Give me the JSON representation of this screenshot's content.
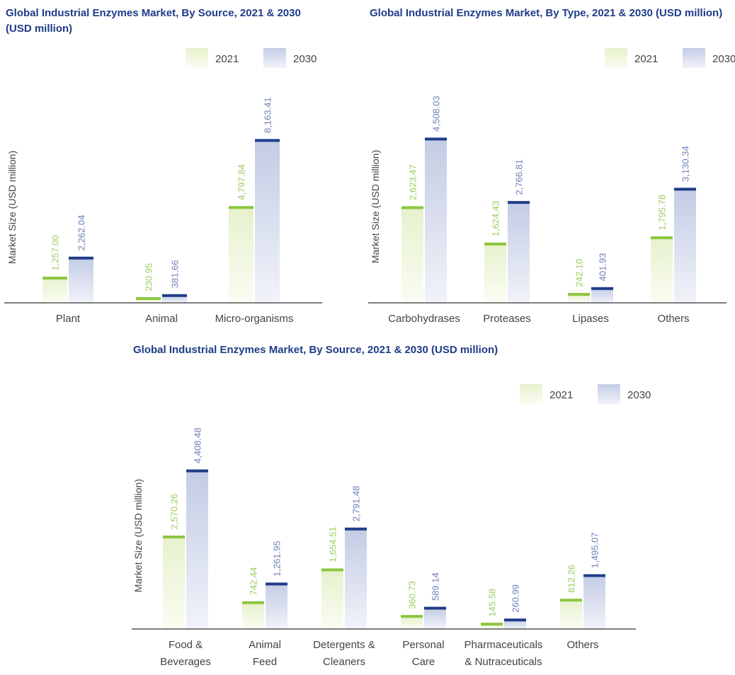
{
  "colors": {
    "title": "#1f3c88",
    "bar_2021_top": "#e7f1cd",
    "bar_2021_bottom": "#fafdf3",
    "bar_2021_cap": "#8cc63f",
    "bar_2030_top": "#c3cce5",
    "bar_2030_bottom": "#f1f3f9",
    "bar_2030_cap": "#1f3c88",
    "label_2021": "#9ccb5f",
    "label_2030": "#6f7fb8",
    "axis": "#555555"
  },
  "chart_data": [
    {
      "type": "bar",
      "title": "Global Industrial Enzymes Market, By Source, 2021 & 2030 (USD million)",
      "ylabel": "Market Size (USD million)",
      "legend": [
        "2021",
        "2030"
      ],
      "categories": [
        [
          "Plant"
        ],
        [
          "Animal"
        ],
        [
          "Micro-organisms"
        ]
      ],
      "series": [
        {
          "name": "2021",
          "values": [
            1257.0,
            230.95,
            4797.84
          ],
          "labels": [
            "1,257.00",
            "230.95",
            "4,797.84"
          ]
        },
        {
          "name": "2030",
          "values": [
            2262.04,
            381.66,
            8163.41
          ],
          "labels": [
            "2,262.04",
            "381.66",
            "8,163.41"
          ]
        }
      ],
      "ylim": [
        0,
        8163.41
      ]
    },
    {
      "type": "bar",
      "title": "Global Industrial Enzymes Market, By Type, 2021 & 2030 (USD million)",
      "ylabel": "Market Size (USD million)",
      "legend": [
        "2021",
        "2030"
      ],
      "categories": [
        [
          "Carbohydrases"
        ],
        [
          "Proteases"
        ],
        [
          "Lipases"
        ],
        [
          "Others"
        ]
      ],
      "series": [
        {
          "name": "2021",
          "values": [
            2623.47,
            1624.43,
            242.1,
            1795.78
          ],
          "labels": [
            "2,623.47",
            "1,624.43",
            "242.10",
            "1,795.78"
          ]
        },
        {
          "name": "2030",
          "values": [
            4508.03,
            2766.81,
            401.93,
            3130.34
          ],
          "labels": [
            "4,508.03",
            "2,766.81",
            "401.93",
            "3,130.34"
          ]
        }
      ],
      "ylim": [
        0,
        4508.03
      ]
    },
    {
      "type": "bar",
      "title": "Global Industrial Enzymes Market, By Source, 2021 & 2030 (USD million)",
      "ylabel": "Market Size (USD million)",
      "legend": [
        "2021",
        "2030"
      ],
      "categories": [
        [
          "Food &",
          "Beverages"
        ],
        [
          "Animal",
          "Feed"
        ],
        [
          "Detergents &",
          "Cleaners"
        ],
        [
          "Personal",
          "Care"
        ],
        [
          "Pharmaceuticals",
          "& Nutraceuticals"
        ],
        [
          "Others"
        ]
      ],
      "series": [
        {
          "name": "2021",
          "values": [
            2570.26,
            742.44,
            1654.51,
            360.73,
            145.58,
            812.26
          ],
          "labels": [
            "2,570.26",
            "742.44",
            "1,654.51",
            "360.73",
            "145.58",
            "812.26"
          ]
        },
        {
          "name": "2030",
          "values": [
            4408.48,
            1261.95,
            2791.48,
            589.14,
            260.99,
            1495.07
          ],
          "labels": [
            "4,408.48",
            "1,261.95",
            "2,791.48",
            "589.14",
            "260.99",
            "1,495.07"
          ]
        }
      ],
      "ylim": [
        0,
        4408.48
      ]
    }
  ]
}
